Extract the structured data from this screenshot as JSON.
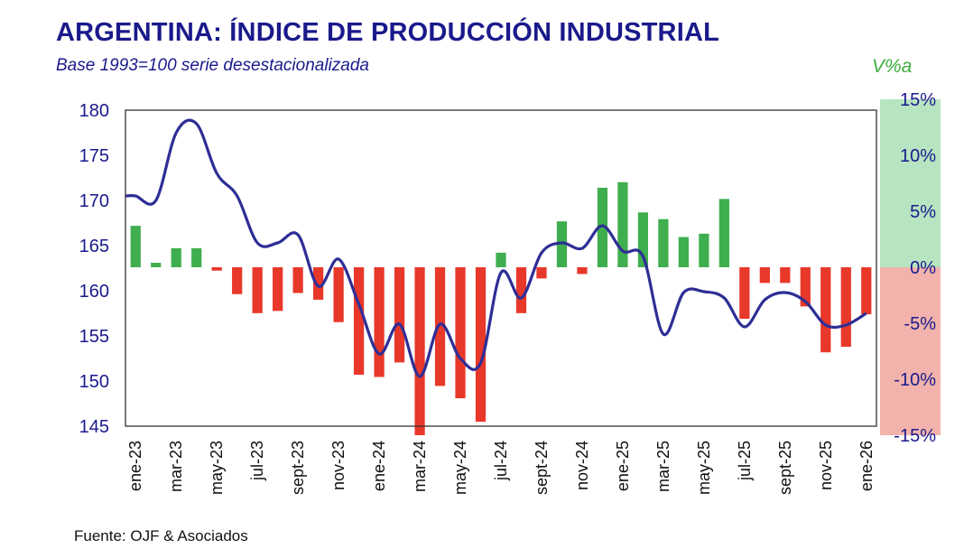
{
  "chart_data": {
    "type": "bar+line",
    "title": "ARGENTINA: ÍNDICE DE PRODUCCIÓN INDUSTRIAL",
    "subtitle": "Base 1993=100 serie desestacionalizada",
    "right_axis_unit": "V%a",
    "source": "Fuente: OJF & Asociados",
    "categories": [
      "ene-23",
      "feb-23",
      "mar-23",
      "abr-23",
      "may-23",
      "jun-23",
      "jul-23",
      "ago-23",
      "sept-23",
      "oct-23",
      "nov-23",
      "dic-23",
      "ene-24",
      "feb-24",
      "mar-24",
      "abr-24",
      "may-24",
      "jun-24",
      "jul-24",
      "ago-24",
      "sept-24",
      "oct-24",
      "nov-24",
      "dic-24",
      "ene-25",
      "feb-25",
      "mar-25",
      "abr-25",
      "may-25",
      "jun-25",
      "jul-25",
      "ago-25",
      "sept-25",
      "oct-25",
      "nov-25",
      "dic-25",
      "ene-26"
    ],
    "x_tick_labels": [
      "ene-23",
      "mar-23",
      "may-23",
      "jul-23",
      "sept-23",
      "nov-23",
      "ene-24",
      "mar-24",
      "may-24",
      "jul-24",
      "sept-24",
      "nov-24",
      "ene-25",
      "mar-25",
      "may-25",
      "jul-25",
      "sept-25",
      "nov-25",
      "ene-26"
    ],
    "line_series": {
      "axis": "left",
      "color": "#2e2e96",
      "values": [
        170.5,
        170.0,
        177.5,
        178.5,
        173.0,
        170.5,
        165.3,
        165.3,
        166.2,
        160.5,
        163.5,
        158.5,
        153.0,
        156.3,
        150.5,
        156.3,
        152.5,
        152.0,
        162.0,
        159.2,
        164.2,
        165.3,
        164.7,
        167.2,
        164.4,
        163.8,
        155.2,
        159.8,
        159.9,
        159.2,
        156.0,
        159.0,
        159.8,
        158.8,
        156.2,
        156.2,
        157.5
      ]
    },
    "bar_series": {
      "axis": "right",
      "positive_color": "#3fae4f",
      "negative_color": "#e8382a",
      "values": [
        3.7,
        0.4,
        1.7,
        1.7,
        -0.3,
        -2.4,
        -4.1,
        -3.9,
        -2.3,
        -2.9,
        -4.9,
        -9.6,
        -9.8,
        -8.5,
        -15.0,
        -10.6,
        -11.7,
        -13.8,
        1.3,
        -4.1,
        -1.0,
        4.1,
        -0.6,
        7.1,
        7.6,
        4.9,
        4.3,
        2.7,
        3.0,
        6.1,
        -4.6,
        -1.4,
        -1.4,
        -3.5,
        -7.6,
        -7.1,
        -4.2
      ]
    },
    "left_axis": {
      "min": 145,
      "max": 180,
      "ticks": [
        "180",
        "175",
        "170",
        "165",
        "160",
        "155",
        "150",
        "145"
      ]
    },
    "right_axis": {
      "min": -15,
      "max": 15,
      "ticks": [
        "15%",
        "10%",
        "5%",
        "0%",
        "-5%",
        "-10%",
        "-15%"
      ],
      "positive_band_color": "#b7e4c1",
      "negative_band_color": "#f2b3ad"
    },
    "grid": false,
    "legend": "none"
  }
}
